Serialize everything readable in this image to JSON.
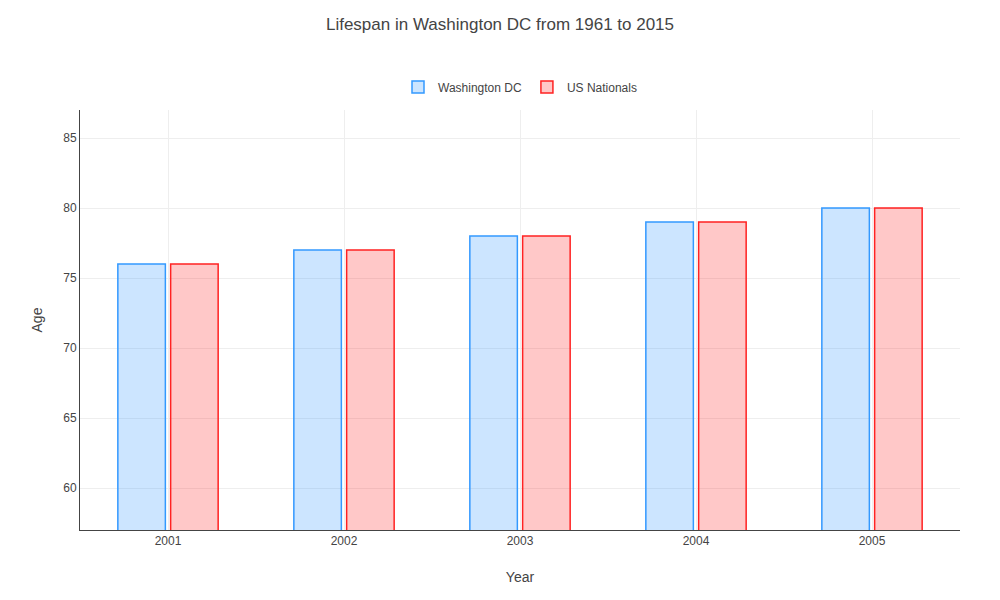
{
  "chart_data": {
    "type": "bar",
    "title": "Lifespan in Washington DC from 1961 to 2015",
    "x_label": "Year",
    "y_label": "Age",
    "categories": [
      "2001",
      "2002",
      "2003",
      "2004",
      "2005"
    ],
    "series": [
      {
        "name": "Washington DC",
        "color": "#3399ff",
        "values": [
          76,
          77,
          78,
          79,
          80
        ]
      },
      {
        "name": "US Nationals",
        "color": "#ff2222",
        "values": [
          76,
          77,
          78,
          79,
          80
        ]
      }
    ],
    "ylim": [
      57,
      87
    ],
    "yticks": [
      60,
      65,
      70,
      75,
      80,
      85
    ],
    "grid": true,
    "legend": "top"
  }
}
